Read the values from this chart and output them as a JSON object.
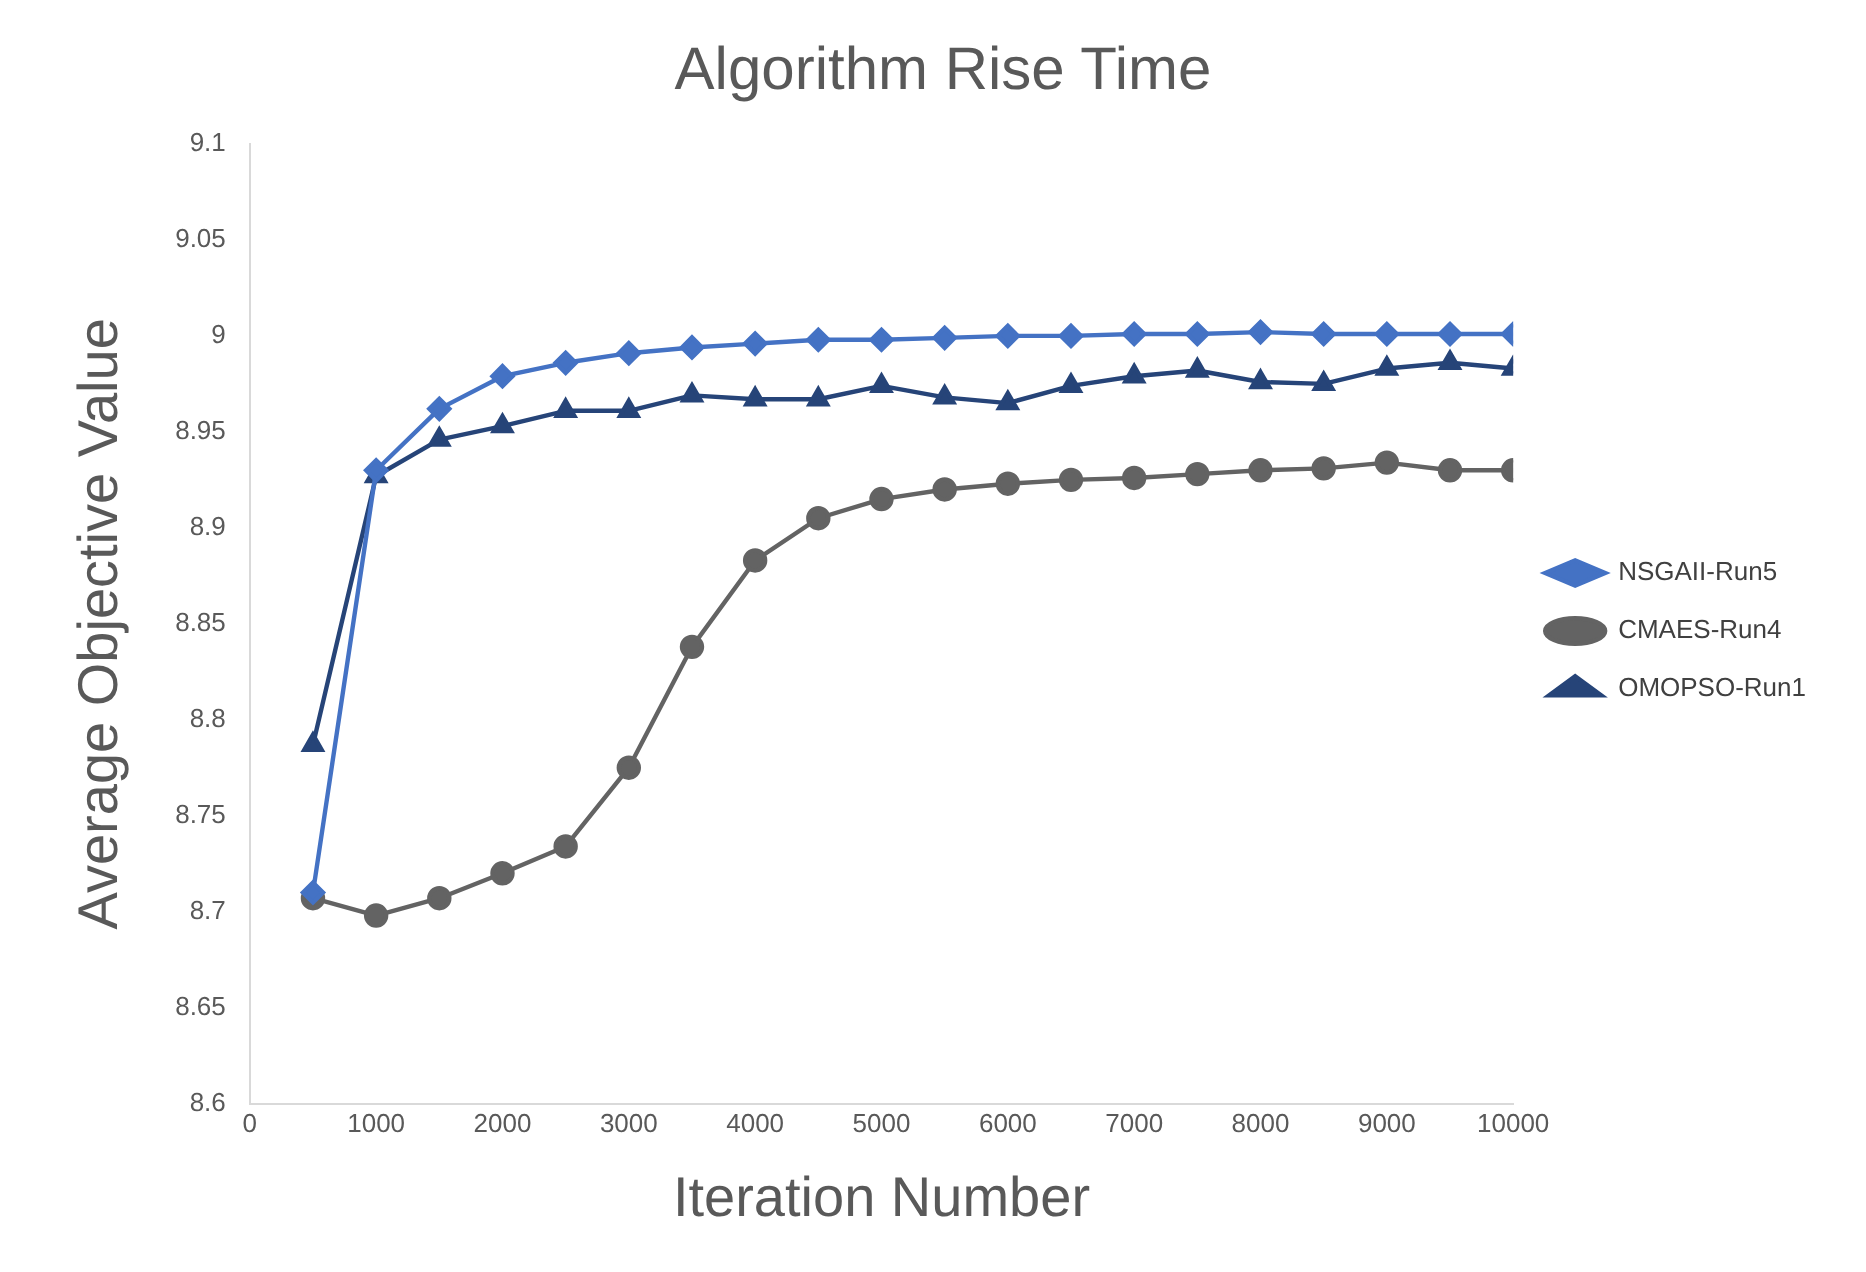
{
  "chart_data": {
    "type": "line",
    "title": "Algorithm Rise Time",
    "xlabel": "Iteration Number",
    "ylabel": "Average Objective Value",
    "x": [
      500,
      1000,
      1500,
      2000,
      2500,
      3000,
      3500,
      4000,
      4500,
      5000,
      5500,
      6000,
      6500,
      7000,
      7500,
      8000,
      8500,
      9000,
      9500,
      10000
    ],
    "xlim": [
      0,
      10000
    ],
    "xticks": [
      0,
      1000,
      2000,
      3000,
      4000,
      5000,
      6000,
      7000,
      8000,
      9000,
      10000
    ],
    "ylim": [
      8.6,
      9.1
    ],
    "yticks": [
      8.6,
      8.65,
      8.7,
      8.75,
      8.8,
      8.85,
      8.9,
      8.95,
      9,
      9.05,
      9.1
    ],
    "grid": false,
    "legend": "right",
    "series": [
      {
        "name": "NSGAII-Run5",
        "color": "#4472c4",
        "marker": "diamond",
        "values": [
          8.71,
          8.93,
          8.962,
          8.979,
          8.986,
          8.991,
          8.994,
          8.996,
          8.998,
          8.998,
          8.999,
          9.0,
          9.0,
          9.001,
          9.001,
          9.002,
          9.001,
          9.001,
          9.001,
          9.001
        ]
      },
      {
        "name": "CMAES-Run4",
        "color": "#636363",
        "marker": "circle",
        "values": [
          8.707,
          8.698,
          8.707,
          8.72,
          8.734,
          8.775,
          8.838,
          8.883,
          8.905,
          8.915,
          8.92,
          8.923,
          8.925,
          8.926,
          8.928,
          8.93,
          8.931,
          8.934,
          8.93,
          8.93
        ]
      },
      {
        "name": "OMOPSO-Run1",
        "color": "#264478",
        "marker": "triangle",
        "values": [
          8.787,
          8.927,
          8.946,
          8.953,
          8.961,
          8.961,
          8.969,
          8.967,
          8.967,
          8.974,
          8.968,
          8.965,
          8.974,
          8.979,
          8.982,
          8.976,
          8.975,
          8.983,
          8.986,
          8.983
        ]
      }
    ]
  }
}
